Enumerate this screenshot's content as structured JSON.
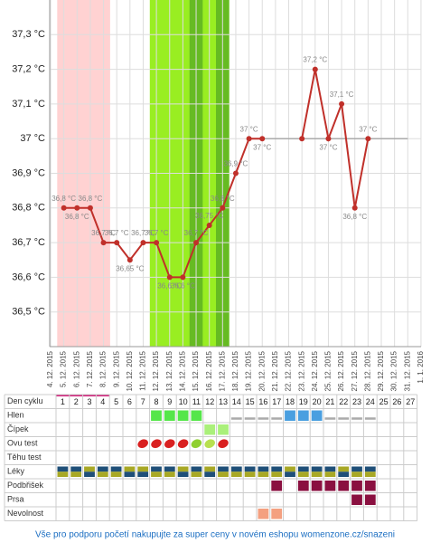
{
  "chart_data": {
    "type": "line",
    "dates": [
      "4. 12. 2015",
      "5. 12. 2015",
      "6. 12. 2015",
      "7. 12. 2015",
      "8. 12. 2015",
      "9. 12. 2015",
      "10. 12. 2015",
      "11. 12. 2015",
      "12. 12. 2015",
      "13. 12. 2015",
      "14. 12. 2015",
      "15. 12. 2015",
      "16. 12. 2015",
      "17. 12. 2015",
      "18. 12. 2015",
      "19. 12. 2015",
      "20. 12. 2015",
      "21. 12. 2015",
      "22. 12. 2015",
      "23. 12. 2015",
      "24. 12. 2015",
      "25. 12. 2015",
      "26. 12. 2015",
      "27. 12. 2015",
      "28. 12. 2015",
      "29. 12. 2015",
      "30. 12. 2015",
      "31. 12. 2015",
      "1. 1. 2016"
    ],
    "series": [
      {
        "color": "#c0302a",
        "values": [
          null,
          36.8,
          36.8,
          36.8,
          36.7,
          36.7,
          36.65,
          36.7,
          36.7,
          36.6,
          36.6,
          36.7,
          36.75,
          36.8,
          36.9,
          37,
          37,
          null,
          null,
          37,
          37.2,
          37,
          37.1,
          36.8,
          37,
          null,
          null,
          null,
          null
        ],
        "value_labels": [
          null,
          "36,8 °C",
          "36,8 °C",
          "36,8 °C",
          "36,7 °C",
          "36,7 °C",
          "36,65 °C",
          "36,7 °C",
          "36,7 °C",
          "36,6 °C",
          "36,6 °C",
          "36,7 °C",
          "36,75 °C",
          "36,8 °C",
          "36,9 °C",
          "37 °C",
          "37 °C",
          null,
          null,
          null,
          "37,2 °C",
          "37 °C",
          "37,1 °C",
          "36,8 °C",
          "37 °C",
          null,
          null,
          null,
          null
        ]
      }
    ],
    "coverline": {
      "value": 37,
      "from": "19. 12. 2015",
      "to": "31. 12. 2015",
      "color": "#aaaaaa"
    },
    "bands": [
      {
        "from": "5. 12. 2015",
        "to": "8. 12. 2015",
        "color": "#ffd2d2"
      },
      {
        "from": "12. 12. 2015",
        "to": "17. 12. 2015",
        "color": "#99ee22"
      },
      {
        "from": "15. 12. 2015",
        "to": "15. 12. 2015",
        "color": "#66bb22"
      },
      {
        "from": "17. 12. 2015",
        "to": "17. 12. 2015",
        "color": "#66bb22"
      }
    ],
    "ylim": [
      36.4,
      37.4
    ],
    "yticks": [
      {
        "value": 36.5,
        "label": "36,5 °C"
      },
      {
        "value": 36.6,
        "label": "36,6 °C"
      },
      {
        "value": 36.7,
        "label": "36,7 °C"
      },
      {
        "value": 36.8,
        "label": "36,8 °C"
      },
      {
        "value": 36.9,
        "label": "36,9 °C"
      },
      {
        "value": 37,
        "label": "37 °C"
      },
      {
        "value": 37.1,
        "label": "37,1 °C"
      },
      {
        "value": 37.2,
        "label": "37,2 °C"
      },
      {
        "value": 37.3,
        "label": "37,3 °C"
      }
    ],
    "grid": true
  },
  "table": {
    "header": {
      "label": "Den cyklu",
      "days": [
        1,
        2,
        3,
        4,
        5,
        6,
        7,
        8,
        9,
        10,
        11,
        12,
        13,
        14,
        15,
        16,
        17,
        18,
        19,
        20,
        21,
        22,
        23,
        24,
        25,
        26,
        27
      ]
    },
    "rows": [
      {
        "label": "Hlen",
        "cells": [
          null,
          null,
          null,
          null,
          null,
          null,
          null,
          "#55e64a",
          "#55e64a",
          "#55e64a",
          "#55e64a",
          null,
          null,
          null,
          null,
          null,
          null,
          "#4a9fe0",
          "#4a9fe0",
          "#4a9fe0",
          null,
          null,
          null,
          null,
          null,
          null,
          null
        ],
        "dashes": [
          14,
          15,
          16,
          17,
          21,
          22,
          23,
          24
        ]
      },
      {
        "label": "Čípek",
        "cells": [
          null,
          null,
          null,
          null,
          null,
          null,
          null,
          null,
          null,
          null,
          null,
          "#aaf07a",
          "#aaf07a",
          null,
          null,
          null,
          null,
          null,
          null,
          null,
          null,
          null,
          null,
          null,
          null,
          null,
          null
        ],
        "dashes": []
      },
      {
        "label": "Ovu test",
        "drops": [
          null,
          null,
          null,
          null,
          null,
          null,
          "#d92020",
          "#d92020",
          "#d92020",
          "#d92020",
          "#8fd030",
          "#b8e050",
          "#d92020",
          null,
          null,
          null,
          null,
          null,
          null,
          null,
          null,
          null,
          null,
          null,
          null,
          null,
          null
        ]
      },
      {
        "label": "Těhu test",
        "cells": [
          null,
          null,
          null,
          null,
          null,
          null,
          null,
          null,
          null,
          null,
          null,
          null,
          null,
          null,
          null,
          null,
          null,
          null,
          null,
          null,
          null,
          null,
          null,
          null,
          null,
          null,
          null
        ],
        "dashes": []
      },
      {
        "label": "Léky",
        "split": [
          "#1f4f78",
          "#a8a825"
        ],
        "cells": [
          "#1f4f78",
          "#1f4f78",
          "#a8a825",
          "#1f4f78",
          "#1f4f78",
          "#a8a825",
          "#a8a825",
          "#1f4f78",
          "#1f4f78",
          "#a8a825",
          "#1f4f78",
          "#a8a825",
          "#1f4f78",
          "#1f4f78",
          "#1f4f78",
          "#1f4f78",
          "#1f4f78",
          "#a8a825",
          "#1f4f78",
          "#1f4f78",
          "#1f4f78",
          "#a8a825",
          "#1f4f78",
          "#1f4f78",
          null,
          null,
          null
        ],
        "dashes": []
      },
      {
        "label": "Podbřišek",
        "cells": [
          null,
          null,
          null,
          null,
          null,
          null,
          null,
          null,
          null,
          null,
          null,
          null,
          null,
          null,
          null,
          null,
          "#8a1040",
          null,
          "#8a1040",
          "#8a1040",
          "#8a1040",
          "#8a1040",
          "#8a1040",
          "#8a1040",
          null,
          null,
          null
        ],
        "dashes": []
      },
      {
        "label": "Prsa",
        "cells": [
          null,
          null,
          null,
          null,
          null,
          null,
          null,
          null,
          null,
          null,
          null,
          null,
          null,
          null,
          null,
          null,
          null,
          null,
          null,
          null,
          null,
          null,
          "#8a1040",
          "#8a1040",
          null,
          null,
          null
        ],
        "dashes": []
      },
      {
        "label": "Nevolnost",
        "cells": [
          null,
          null,
          null,
          null,
          null,
          null,
          null,
          null,
          null,
          null,
          null,
          null,
          null,
          null,
          null,
          "#f4a080",
          "#f4a080",
          null,
          null,
          null,
          null,
          null,
          null,
          null,
          null,
          null,
          null
        ],
        "dashes": []
      }
    ]
  },
  "footer": "Vše pro podporu početí nakupujte za super ceny v novém eshopu womenzone.cz/snazeni"
}
